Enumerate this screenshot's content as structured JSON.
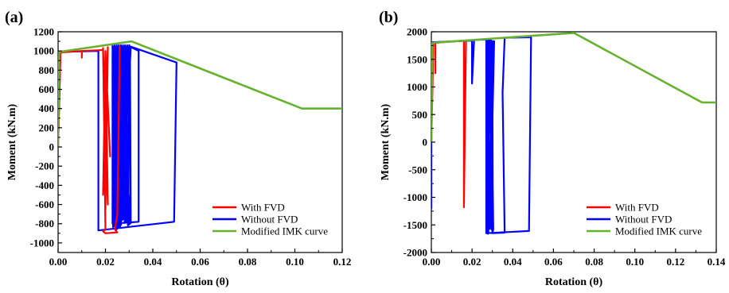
{
  "chart_data": [
    {
      "type": "line",
      "panel_label": "(a)",
      "xlabel": "Rotation (θ)",
      "ylabel": "Moment (kN.m)",
      "xlim": [
        0,
        0.12
      ],
      "ylim": [
        -1100,
        1200
      ],
      "xticks": [
        "0.00",
        "0.02",
        "0.04",
        "0.06",
        "0.08",
        "0.10",
        "0.12"
      ],
      "yticks": [
        "-1000",
        "-800",
        "-600",
        "-400",
        "-200",
        "0",
        "200",
        "400",
        "600",
        "800",
        "1000",
        "1200"
      ],
      "legend": {
        "placement": "bottom-right"
      },
      "grid": false,
      "series": [
        {
          "name": "With FVD",
          "color": "#ff0000",
          "points": [
            [
              0,
              0
            ],
            [
              0.001,
              985
            ],
            [
              0.01,
              1000
            ],
            [
              0.01,
              930
            ],
            [
              0.01,
              1000
            ],
            [
              0.019,
              1010
            ],
            [
              0.02,
              -650
            ],
            [
              0.021,
              1040
            ],
            [
              0.019,
              -500
            ],
            [
              0.02,
              1000
            ],
            [
              0.022,
              -100
            ],
            [
              0.02,
              980
            ],
            [
              0.021,
              -600
            ],
            [
              0.019,
              1030
            ],
            [
              0.02,
              -860
            ],
            [
              0.019,
              -880
            ],
            [
              0.02,
              -900
            ],
            [
              0.025,
              -890
            ],
            [
              0.024,
              -860
            ],
            [
              0.025,
              -700
            ],
            [
              0.026,
              1050
            ]
          ],
          "loops": []
        },
        {
          "name": "Without FVD",
          "color": "#0000ff",
          "points": [
            [
              0,
              0
            ],
            [
              0.001,
              990
            ],
            [
              0.017,
              1000
            ],
            [
              0.017,
              -870
            ],
            [
              0.049,
              -780
            ],
            [
              0.049,
              -760
            ],
            [
              0.05,
              880
            ],
            [
              0.03,
              1050
            ],
            [
              0.034,
              1000
            ],
            [
              0.034,
              -780
            ],
            [
              0.023,
              -800
            ]
          ],
          "loops": [
            {
              "x_min": 0.023,
              "x_max": 0.031,
              "y_min": -860,
              "y_max": 1060,
              "count": 26
            }
          ]
        },
        {
          "name": "Modified IMK curve",
          "color": "#66b22e",
          "points": [
            [
              0,
              0
            ],
            [
              0.0005,
              990
            ],
            [
              0.031,
              1100
            ],
            [
              0.103,
              400
            ],
            [
              0.12,
              400
            ]
          ],
          "loops": []
        }
      ]
    },
    {
      "type": "line",
      "panel_label": "(b)",
      "xlabel": "Rotation (θ)",
      "ylabel": "Moment (kN.m)",
      "xlim": [
        0,
        0.14
      ],
      "ylim": [
        -2000,
        2000
      ],
      "xticks": [
        "0.00",
        "0.02",
        "0.04",
        "0.06",
        "0.08",
        "0.10",
        "0.12",
        "0.14"
      ],
      "yticks": [
        "-2000",
        "-1500",
        "-1000",
        "-500",
        "0",
        "500",
        "1000",
        "1500",
        "2000"
      ],
      "legend": {
        "placement": "bottom-right"
      },
      "grid": false,
      "series": [
        {
          "name": "With FVD",
          "color": "#ff0000",
          "points": [
            [
              0,
              0
            ],
            [
              0.001,
              1800
            ],
            [
              0.002,
              1800
            ],
            [
              0.002,
              1250
            ],
            [
              0.002,
              1800
            ],
            [
              0.016,
              1840
            ],
            [
              0.016,
              -1180
            ],
            [
              0.017,
              1820
            ],
            [
              0.016,
              -1000
            ],
            [
              0.017,
              1840
            ],
            [
              0.016,
              -700
            ],
            [
              0.016,
              1830
            ]
          ],
          "loops": []
        },
        {
          "name": "Without FVD",
          "color": "#0000ff",
          "points": [
            [
              0,
              0
            ],
            [
              0,
              -1200
            ],
            [
              0,
              1810
            ],
            [
              0.02,
              1840
            ],
            [
              0.02,
              1060
            ],
            [
              0.021,
              1850
            ],
            [
              0.027,
              1860
            ],
            [
              0.027,
              -1650
            ],
            [
              0.048,
              -1610
            ],
            [
              0.049,
              1900
            ],
            [
              0.036,
              1890
            ],
            [
              0.035,
              900
            ],
            [
              0.036,
              -1640
            ],
            [
              0.03,
              -1650
            ],
            [
              0.029,
              1850
            ]
          ],
          "loops": [
            {
              "x_min": 0.027,
              "x_max": 0.031,
              "y_min": -1660,
              "y_max": 1860,
              "count": 10
            }
          ]
        },
        {
          "name": "Modified IMK curve",
          "color": "#66b22e",
          "points": [
            [
              0,
              0
            ],
            [
              0.0005,
              1800
            ],
            [
              0.07,
              1980
            ],
            [
              0.133,
              720
            ],
            [
              0.14,
              720
            ]
          ],
          "loops": []
        }
      ]
    }
  ]
}
